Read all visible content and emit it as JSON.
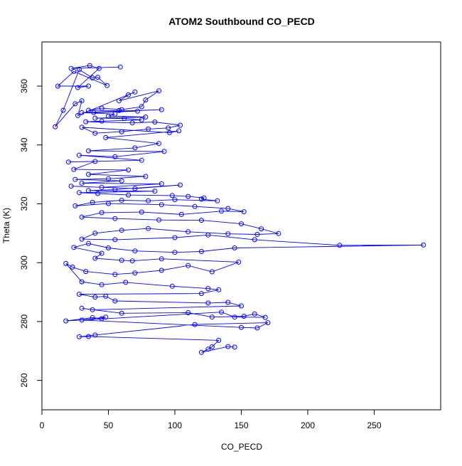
{
  "chart_data": {
    "type": "scatter",
    "title": "ATOM2 Southbound CO_PECD",
    "xlabel": "CO_PECD",
    "ylabel": "Theta (K)",
    "xlim": [
      0,
      300
    ],
    "ylim": [
      250,
      375
    ],
    "x_ticks": [
      0,
      50,
      100,
      150,
      200,
      250
    ],
    "y_ticks": [
      260,
      280,
      300,
      320,
      340,
      360
    ],
    "grid": false,
    "legend": "none",
    "connect_points": true,
    "series_color": "#0000ff",
    "points": [
      [
        59,
        366.5
      ],
      [
        22,
        366
      ],
      [
        36,
        367
      ],
      [
        43,
        366
      ],
      [
        27,
        359.5
      ],
      [
        35,
        360
      ],
      [
        12,
        360
      ],
      [
        24,
        365
      ],
      [
        49,
        360.2
      ],
      [
        42,
        363
      ],
      [
        38,
        362.8
      ],
      [
        28,
        365.6
      ],
      [
        16,
        351.8
      ],
      [
        10,
        346.2
      ],
      [
        25,
        354
      ],
      [
        30,
        355
      ],
      [
        27,
        350
      ],
      [
        70,
        358
      ],
      [
        65,
        357
      ],
      [
        58,
        355
      ],
      [
        88,
        358.4
      ],
      [
        78,
        355.3
      ],
      [
        75,
        353
      ],
      [
        60,
        352
      ],
      [
        45,
        352.5
      ],
      [
        35,
        351.8
      ],
      [
        58,
        351.7
      ],
      [
        72,
        351.5
      ],
      [
        39,
        351
      ],
      [
        90,
        352
      ],
      [
        30,
        351
      ],
      [
        55,
        350.5
      ],
      [
        50,
        349.8
      ],
      [
        78,
        349.5
      ],
      [
        40,
        349.1
      ],
      [
        62,
        349
      ],
      [
        75,
        348.5
      ],
      [
        45,
        348.1
      ],
      [
        33,
        347.9
      ],
      [
        68,
        347.5
      ],
      [
        85,
        347.8
      ],
      [
        104,
        346.7
      ],
      [
        95,
        345.8
      ],
      [
        80,
        345.4
      ],
      [
        60,
        344.5
      ],
      [
        40,
        344
      ],
      [
        30,
        346
      ],
      [
        96,
        344.2
      ],
      [
        103,
        344.8
      ],
      [
        48,
        342.5
      ],
      [
        88,
        340.5
      ],
      [
        70,
        339
      ],
      [
        35,
        338
      ],
      [
        92,
        337.8
      ],
      [
        55,
        336
      ],
      [
        28,
        336.5
      ],
      [
        75,
        334.8
      ],
      [
        20,
        334.2
      ],
      [
        40,
        334.4
      ],
      [
        24,
        331.7
      ],
      [
        65,
        331.5
      ],
      [
        35,
        330
      ],
      [
        78,
        329.3
      ],
      [
        50,
        328.5
      ],
      [
        25,
        328.3
      ],
      [
        60,
        327.8
      ],
      [
        30,
        327
      ],
      [
        90,
        326.8
      ],
      [
        45,
        325.6
      ],
      [
        22,
        326
      ],
      [
        70,
        325.2
      ],
      [
        104,
        326.4
      ],
      [
        55,
        324.8
      ],
      [
        35,
        324.5
      ],
      [
        85,
        324.3
      ],
      [
        28,
        323.8
      ],
      [
        42,
        323.5
      ],
      [
        65,
        323
      ],
      [
        98,
        322.8
      ],
      [
        110,
        322.5
      ],
      [
        122,
        322
      ],
      [
        120,
        321.6
      ],
      [
        132,
        321
      ],
      [
        100,
        321.4
      ],
      [
        80,
        321
      ],
      [
        60,
        321.2
      ],
      [
        38,
        320.5
      ],
      [
        25,
        319.3
      ],
      [
        50,
        320.1
      ],
      [
        90,
        319.7
      ],
      [
        115,
        319.1
      ],
      [
        140,
        318.4
      ],
      [
        152,
        317.3
      ],
      [
        135,
        317.5
      ],
      [
        105,
        316.4
      ],
      [
        75,
        317.2
      ],
      [
        45,
        317
      ],
      [
        30,
        315.5
      ],
      [
        55,
        315
      ],
      [
        88,
        314.5
      ],
      [
        120,
        314.4
      ],
      [
        150,
        313.2
      ],
      [
        165,
        311.5
      ],
      [
        178,
        309.9
      ],
      [
        162,
        309.6
      ],
      [
        140,
        309.8
      ],
      [
        110,
        310.5
      ],
      [
        80,
        311.6
      ],
      [
        60,
        311
      ],
      [
        40,
        310
      ],
      [
        30,
        308
      ],
      [
        55,
        307.8
      ],
      [
        100,
        308.5
      ],
      [
        125,
        309.4
      ],
      [
        160,
        307.8
      ],
      [
        224,
        305.9
      ],
      [
        287,
        306
      ],
      [
        145,
        305
      ],
      [
        120,
        303.8
      ],
      [
        100,
        303.5
      ],
      [
        70,
        304
      ],
      [
        50,
        305
      ],
      [
        35,
        306.5
      ],
      [
        24,
        305.2
      ],
      [
        45,
        303.2
      ],
      [
        40,
        301.5
      ],
      [
        60,
        300.8
      ],
      [
        68,
        300.6
      ],
      [
        90,
        301.3
      ],
      [
        148,
        300.2
      ],
      [
        128,
        296.9
      ],
      [
        110,
        299
      ],
      [
        90,
        297.4
      ],
      [
        70,
        296.5
      ],
      [
        55,
        296
      ],
      [
        33,
        297
      ],
      [
        23,
        298.5
      ],
      [
        18,
        299.7
      ],
      [
        30,
        293.5
      ],
      [
        45,
        292.5
      ],
      [
        63,
        293.3
      ],
      [
        98,
        292
      ],
      [
        125,
        291.2
      ],
      [
        133,
        290.8
      ],
      [
        120,
        289.5
      ],
      [
        28,
        289.3
      ],
      [
        40,
        288.3
      ],
      [
        48,
        288.6
      ],
      [
        55,
        287
      ],
      [
        125,
        286.3
      ],
      [
        140,
        286.5
      ],
      [
        150,
        285.3
      ],
      [
        38,
        284
      ],
      [
        30,
        284.5
      ],
      [
        60,
        282.8
      ],
      [
        110,
        283
      ],
      [
        128,
        281.5
      ],
      [
        152,
        281.8
      ],
      [
        160,
        282.6
      ],
      [
        168,
        281.4
      ],
      [
        145,
        281.5
      ],
      [
        135,
        283.2
      ],
      [
        18,
        280.2
      ],
      [
        38,
        281.3
      ],
      [
        45,
        281
      ],
      [
        48,
        281.5
      ],
      [
        30,
        280.5
      ],
      [
        150,
        278
      ],
      [
        162,
        277.8
      ],
      [
        170,
        279.6
      ],
      [
        115,
        279
      ],
      [
        40,
        275.4
      ],
      [
        28,
        274.8
      ],
      [
        35,
        274.9
      ],
      [
        133,
        273.6
      ],
      [
        128,
        271.4
      ],
      [
        125,
        270.6
      ],
      [
        120,
        269.5
      ],
      [
        140,
        271.5
      ],
      [
        145,
        271.3
      ]
    ]
  }
}
